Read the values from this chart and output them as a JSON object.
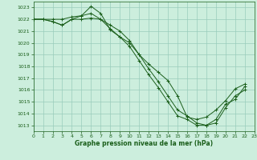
{
  "title": "Graphe pression niveau de la mer (hPa)",
  "bg_color": "#cceedd",
  "grid_color": "#99ccbb",
  "line_color": "#1a5e1a",
  "xlim": [
    0,
    23
  ],
  "ylim": [
    1012.5,
    1023.5
  ],
  "yticks": [
    1013,
    1014,
    1015,
    1016,
    1017,
    1018,
    1019,
    1020,
    1021,
    1022,
    1023
  ],
  "xticks": [
    0,
    1,
    2,
    3,
    4,
    5,
    6,
    7,
    8,
    9,
    10,
    11,
    12,
    13,
    14,
    15,
    16,
    17,
    18,
    19,
    20,
    21,
    22,
    23
  ],
  "series": [
    {
      "x": [
        0,
        1,
        2,
        3,
        4,
        5,
        6,
        7,
        8,
        9,
        10,
        11,
        12,
        13,
        14,
        15,
        16,
        17,
        18,
        19,
        20,
        21,
        22
      ],
      "y": [
        1022,
        1022,
        1022,
        1022,
        1022.2,
        1022.3,
        1023.1,
        1022.5,
        1021.1,
        1020.5,
        1020.0,
        1019.0,
        1018.2,
        1017.5,
        1016.8,
        1015.5,
        1013.7,
        1013.5,
        1013.7,
        1014.3,
        1015.1,
        1016.1,
        1016.5
      ]
    },
    {
      "x": [
        0,
        1,
        2,
        3,
        4,
        5,
        6,
        7,
        8,
        9,
        10,
        11,
        12,
        13,
        14,
        15,
        16,
        17,
        18,
        19,
        20,
        21,
        22
      ],
      "y": [
        1022,
        1022,
        1021.8,
        1021.5,
        1022.0,
        1022.3,
        1022.5,
        1022.0,
        1021.2,
        1020.5,
        1019.7,
        1018.5,
        1017.3,
        1016.2,
        1015.0,
        1013.8,
        1013.5,
        1013.0,
        1013.0,
        1013.5,
        1014.8,
        1015.2,
        1016.3
      ]
    },
    {
      "x": [
        0,
        1,
        2,
        3,
        4,
        5,
        6,
        7,
        8,
        9,
        10,
        11,
        12,
        13,
        14,
        15,
        16,
        17,
        18,
        19,
        20,
        21,
        22
      ],
      "y": [
        1022,
        1022,
        1021.8,
        1021.5,
        1022.0,
        1022.0,
        1022.1,
        1022.0,
        1021.5,
        1021.0,
        1020.2,
        1019.0,
        1017.8,
        1016.7,
        1015.5,
        1014.3,
        1013.8,
        1013.2,
        1013.0,
        1013.2,
        1014.5,
        1015.5,
        1016.0
      ]
    }
  ]
}
